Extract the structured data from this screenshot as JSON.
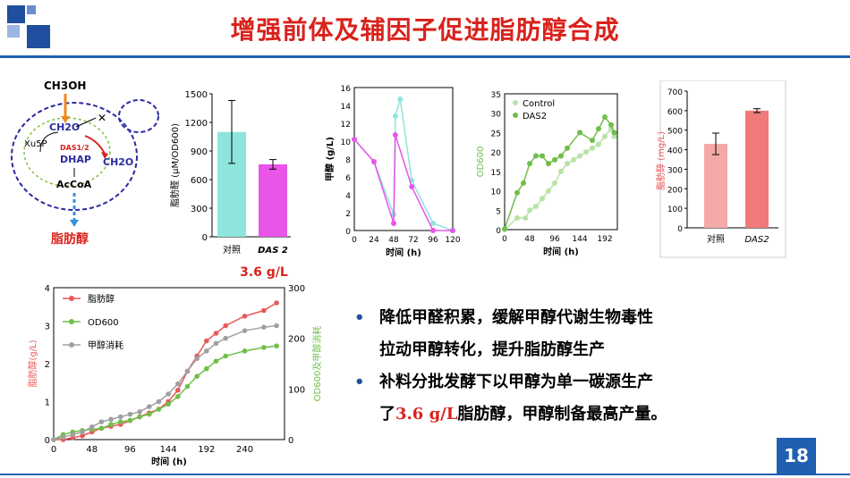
{
  "title": "增强前体及辅因子促进脂肪醇合成",
  "page_number": "18",
  "pathway": {
    "ch3oh": "CH3OH",
    "ch2o": "CH2O",
    "ch2o_out": "CH2O",
    "xu5p": "Xu5P",
    "das": "DAS1/2",
    "dhap": "DHAP",
    "accoa": "AcCoA",
    "product": "脂肪醇",
    "knockout": "✕"
  },
  "bullets": [
    {
      "line1": "降低甲醛积累，缓解甲醇代谢生物毒性",
      "line2": "拉动甲醇转化，提升脂肪醇生产"
    },
    {
      "line1": "补料分批发酵下以甲醇为单一碳源生产",
      "line2_pre": "了",
      "line2_red": "3.6 g/L",
      "line2_post": "脂肪醇，甲醇制备最高产量。"
    }
  ],
  "chart_data": [
    {
      "type": "bar",
      "ylabel": "脂肪醛 (μM/OD600)",
      "categories": [
        "对照",
        "DAS2"
      ],
      "values": [
        1100,
        760
      ],
      "errors": [
        330,
        50
      ],
      "ylim": [
        0,
        1500
      ],
      "yticks": [
        "0",
        "300",
        "600",
        "900",
        "1200",
        "1500"
      ],
      "colors": [
        "#8ee5dc",
        "#e855e8"
      ]
    },
    {
      "type": "line",
      "xlabel": "时间 (h)",
      "ylabel": "甲醇 (g/L)",
      "xlim": [
        0,
        120
      ],
      "ylim": [
        0,
        16
      ],
      "xticks": [
        "0",
        "24",
        "48",
        "72",
        "96",
        "120"
      ],
      "yticks": [
        "0",
        "2",
        "4",
        "6",
        "8",
        "10",
        "12",
        "14",
        "16"
      ],
      "series": [
        {
          "color": "#e855e8",
          "x": [
            0,
            24,
            48,
            50,
            70,
            96,
            120
          ],
          "y": [
            10.2,
            7.7,
            0.8,
            10.7,
            4.9,
            0,
            0
          ]
        },
        {
          "color": "#8ee5dc",
          "x": [
            0,
            24,
            48,
            50,
            56,
            70,
            96,
            120
          ],
          "y": [
            10.2,
            7.7,
            1.8,
            12.8,
            14.7,
            5.6,
            0.8,
            0
          ]
        }
      ]
    },
    {
      "type": "line",
      "xlabel": "时间 (h)",
      "ylabel": "OD600",
      "xlim": [
        0,
        216
      ],
      "ylim": [
        0,
        35
      ],
      "xticks": [
        "0",
        "48",
        "96",
        "144",
        "192"
      ],
      "yticks": [
        "0",
        "5",
        "10",
        "15",
        "20",
        "25",
        "30",
        "35"
      ],
      "series": [
        {
          "name": "Control",
          "color": "#b9e3a6",
          "x": [
            0,
            24,
            40,
            48,
            60,
            72,
            84,
            96,
            108,
            120,
            132,
            144,
            156,
            168,
            180,
            192,
            204,
            210
          ],
          "y": [
            0,
            3,
            3,
            5,
            6,
            8,
            10,
            12,
            15,
            17,
            18,
            19,
            20,
            21,
            22,
            24,
            26,
            24
          ]
        },
        {
          "name": "DAS2",
          "color": "#6fbf4a",
          "x": [
            0,
            24,
            36,
            48,
            60,
            72,
            84,
            96,
            108,
            120,
            144,
            168,
            180,
            192,
            204,
            210
          ],
          "y": [
            0.2,
            9.5,
            12,
            17,
            19,
            19,
            17,
            18,
            19,
            21,
            25,
            23,
            26,
            29,
            27,
            25
          ]
        }
      ]
    },
    {
      "type": "bar",
      "ylabel": "脂肪醇 (mg/L)",
      "categories": [
        "对照",
        "DAS2"
      ],
      "values": [
        430,
        600
      ],
      "errors": [
        55,
        10
      ],
      "ylim": [
        0,
        700
      ],
      "yticks": [
        "0",
        "100",
        "200",
        "300",
        "400",
        "500",
        "600",
        "700"
      ],
      "colors": [
        "#f4a8a8",
        "#f07a7a"
      ]
    },
    {
      "type": "line",
      "xlabel": "时间 (h)",
      "ylabel": "脂肪醇 (g/L)",
      "y2label": "OD600 及甲醇消耗",
      "xlim": [
        0,
        290
      ],
      "ylim": [
        0,
        4
      ],
      "y2lim": [
        0,
        300
      ],
      "xticks": [
        "0",
        "48",
        "96",
        "144",
        "192",
        "240"
      ],
      "yticks": [
        "0",
        "1",
        "2",
        "3",
        "4"
      ],
      "y2ticks": [
        "0",
        "100",
        "200",
        "300"
      ],
      "series": [
        {
          "name": "脂肪醇",
          "color": "#e85858",
          "x": [
            0,
            12,
            24,
            36,
            48,
            60,
            72,
            84,
            96,
            108,
            120,
            132,
            144,
            156,
            168,
            180,
            192,
            204,
            216,
            240,
            264,
            280
          ],
          "y": [
            0,
            0,
            0.05,
            0.1,
            0.2,
            0.3,
            0.35,
            0.4,
            0.5,
            0.6,
            0.7,
            0.8,
            1.0,
            1.3,
            1.8,
            2.2,
            2.6,
            2.8,
            3.0,
            3.25,
            3.4,
            3.6
          ]
        },
        {
          "name": "OD600",
          "color": "#6fbf4a",
          "x": [
            0,
            12,
            24,
            36,
            48,
            60,
            72,
            84,
            96,
            108,
            120,
            132,
            144,
            156,
            168,
            180,
            192,
            204,
            216,
            240,
            264,
            280
          ],
          "y2": [
            0,
            10,
            15,
            18,
            20,
            22,
            30,
            35,
            38,
            45,
            50,
            60,
            70,
            85,
            105,
            125,
            140,
            155,
            165,
            175,
            182,
            185
          ]
        },
        {
          "name": "甲醇消耗",
          "color": "#a0a0a0",
          "x": [
            0,
            12,
            24,
            36,
            48,
            60,
            72,
            84,
            96,
            108,
            120,
            132,
            144,
            156,
            168,
            180,
            192,
            204,
            216,
            240,
            264,
            280
          ],
          "y2": [
            0,
            5,
            10,
            15,
            25,
            35,
            40,
            45,
            50,
            55,
            65,
            75,
            90,
            110,
            135,
            160,
            175,
            190,
            200,
            215,
            222,
            225
          ]
        }
      ]
    }
  ],
  "labels": {
    "bar1_x1": "对照",
    "bar1_x2": "DAS 2",
    "bar1_note": "3.6 g/L",
    "ch3_legend1": "Control",
    "ch3_legend2": "DAS2",
    "ch5_legend1": "脂肪醇",
    "ch5_legend2": "OD600",
    "ch5_legend3": "甲醇消耗",
    "bar2_x1": "对照",
    "bar2_x2": "DAS2",
    "ch2_ylabel": "甲醇 (g/L)",
    "ch2_xlabel": "时间 (h)",
    "ch3_ylabel": "OD600",
    "ch3_xlabel": "时间 (h)",
    "ch5_xlabel": "时间 (h)",
    "ch5_ylabel": "脂肪醇(g/L)",
    "ch5_y2label": "OD600及甲醇消耗",
    "bar1_ylabel": "脂肪醛 (μM/OD600)",
    "bar2_ylabel": "脂肪醇 (mg/L)"
  }
}
